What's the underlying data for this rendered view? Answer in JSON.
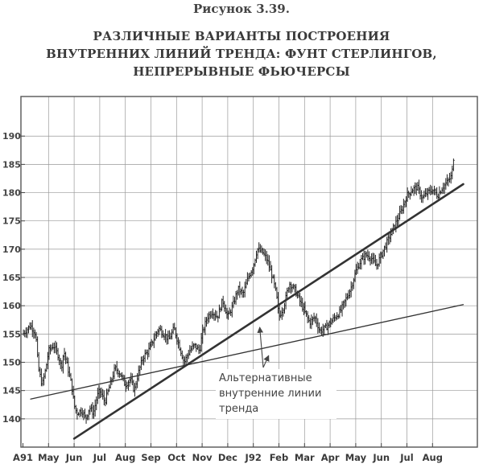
{
  "figure_label": "Рисунок 3.39.",
  "title_lines": [
    "РАЗЛИЧНЫЕ ВАРИАНТЫ ПОСТРОЕНИЯ",
    "ВНУТРЕННИХ ЛИНИЙ ТРЕНДА: ФУНТ СТЕРЛИНГОВ,",
    "НЕПРЕРЫВНЫЕ ФЬЮЧЕРСЫ"
  ],
  "chart_data": {
    "type": "bar",
    "subtype": "ohlc-price-bars",
    "title": "РАЗЛИЧНЫЕ ВАРИАНТЫ ПОСТРОЕНИЯ ВНУТРЕННИХ ЛИНИЙ ТРЕНДА: ФУНТ СТЕРЛИНГОВ, НЕПРЕРЫВНЫЕ ФЬЮЧЕРСЫ",
    "x_tick_labels": [
      "A91",
      "May",
      "Jun",
      "Jul",
      "Aug",
      "Sep",
      "Oct",
      "Nov",
      "Dec",
      "J92",
      "Feb",
      "Mar",
      "Apr",
      "May",
      "Jun",
      "Jul",
      "Aug"
    ],
    "y_tick_labels": [
      "140",
      "145",
      "150",
      "155",
      "160",
      "165",
      "170",
      "175",
      "180",
      "185",
      "190"
    ],
    "y_ticks": [
      140,
      145,
      150,
      155,
      160,
      165,
      170,
      175,
      180,
      185,
      190
    ],
    "ylim": [
      135,
      197
    ],
    "xlim": [
      0,
      17.2
    ],
    "grid": true,
    "price_path": [
      [
        0.0,
        155
      ],
      [
        0.3,
        156.5
      ],
      [
        0.5,
        155
      ],
      [
        0.6,
        149
      ],
      [
        0.75,
        146
      ],
      [
        0.9,
        149
      ],
      [
        1.0,
        152
      ],
      [
        1.2,
        153
      ],
      [
        1.4,
        151
      ],
      [
        1.5,
        149
      ],
      [
        1.6,
        152
      ],
      [
        1.8,
        148
      ],
      [
        1.9,
        146
      ],
      [
        2.0,
        142.5
      ],
      [
        2.1,
        141
      ],
      [
        2.3,
        141.5
      ],
      [
        2.45,
        140
      ],
      [
        2.6,
        142
      ],
      [
        2.75,
        141
      ],
      [
        2.9,
        144
      ],
      [
        3.0,
        145
      ],
      [
        3.2,
        143
      ],
      [
        3.4,
        146
      ],
      [
        3.6,
        149
      ],
      [
        3.8,
        148
      ],
      [
        4.0,
        146
      ],
      [
        4.2,
        147
      ],
      [
        4.35,
        145
      ],
      [
        4.5,
        148
      ],
      [
        4.7,
        151
      ],
      [
        4.9,
        152
      ],
      [
        5.1,
        154
      ],
      [
        5.3,
        156
      ],
      [
        5.5,
        155
      ],
      [
        5.7,
        154
      ],
      [
        5.9,
        156
      ],
      [
        6.1,
        153
      ],
      [
        6.3,
        150
      ],
      [
        6.5,
        152
      ],
      [
        6.7,
        153
      ],
      [
        6.9,
        152
      ],
      [
        7.0,
        155
      ],
      [
        7.2,
        158
      ],
      [
        7.4,
        159
      ],
      [
        7.6,
        158
      ],
      [
        7.8,
        161
      ],
      [
        8.0,
        158
      ],
      [
        8.2,
        160
      ],
      [
        8.4,
        163
      ],
      [
        8.6,
        162
      ],
      [
        8.8,
        165
      ],
      [
        9.0,
        167
      ],
      [
        9.15,
        170
      ],
      [
        9.35,
        169.5
      ],
      [
        9.55,
        168
      ],
      [
        9.75,
        165
      ],
      [
        9.9,
        162
      ],
      [
        10.0,
        158
      ],
      [
        10.2,
        160
      ],
      [
        10.4,
        164
      ],
      [
        10.6,
        163
      ],
      [
        10.8,
        161
      ],
      [
        11.0,
        159
      ],
      [
        11.2,
        157
      ],
      [
        11.4,
        158
      ],
      [
        11.6,
        155.5
      ],
      [
        11.8,
        156
      ],
      [
        12.0,
        157
      ],
      [
        12.2,
        158
      ],
      [
        12.4,
        159
      ],
      [
        12.6,
        161
      ],
      [
        12.8,
        163
      ],
      [
        13.0,
        166
      ],
      [
        13.2,
        168
      ],
      [
        13.4,
        169
      ],
      [
        13.6,
        168.5
      ],
      [
        13.8,
        167
      ],
      [
        14.0,
        169
      ],
      [
        14.2,
        171
      ],
      [
        14.4,
        173
      ],
      [
        14.6,
        175
      ],
      [
        14.8,
        177
      ],
      [
        15.0,
        179.5
      ],
      [
        15.2,
        180.5
      ],
      [
        15.4,
        181
      ],
      [
        15.6,
        179
      ],
      [
        15.8,
        180
      ],
      [
        16.0,
        180.5
      ],
      [
        16.2,
        179.5
      ],
      [
        16.4,
        181
      ],
      [
        16.6,
        182
      ],
      [
        16.75,
        183
      ],
      [
        16.85,
        187.5
      ]
    ],
    "trend_lines": [
      {
        "from": [
          2.0,
          136.5
        ],
        "to": [
          17.2,
          181.5
        ],
        "style": "thick"
      },
      {
        "from": [
          0.3,
          143.5
        ],
        "to": [
          17.2,
          160.2
        ],
        "style": "thin"
      }
    ],
    "annotation": {
      "lines": [
        "Альтернативные",
        "внутренние линии",
        "тренда"
      ],
      "arrow_targets": [
        [
          9.25,
          156.2
        ],
        [
          9.6,
          151.2
        ]
      ]
    }
  }
}
